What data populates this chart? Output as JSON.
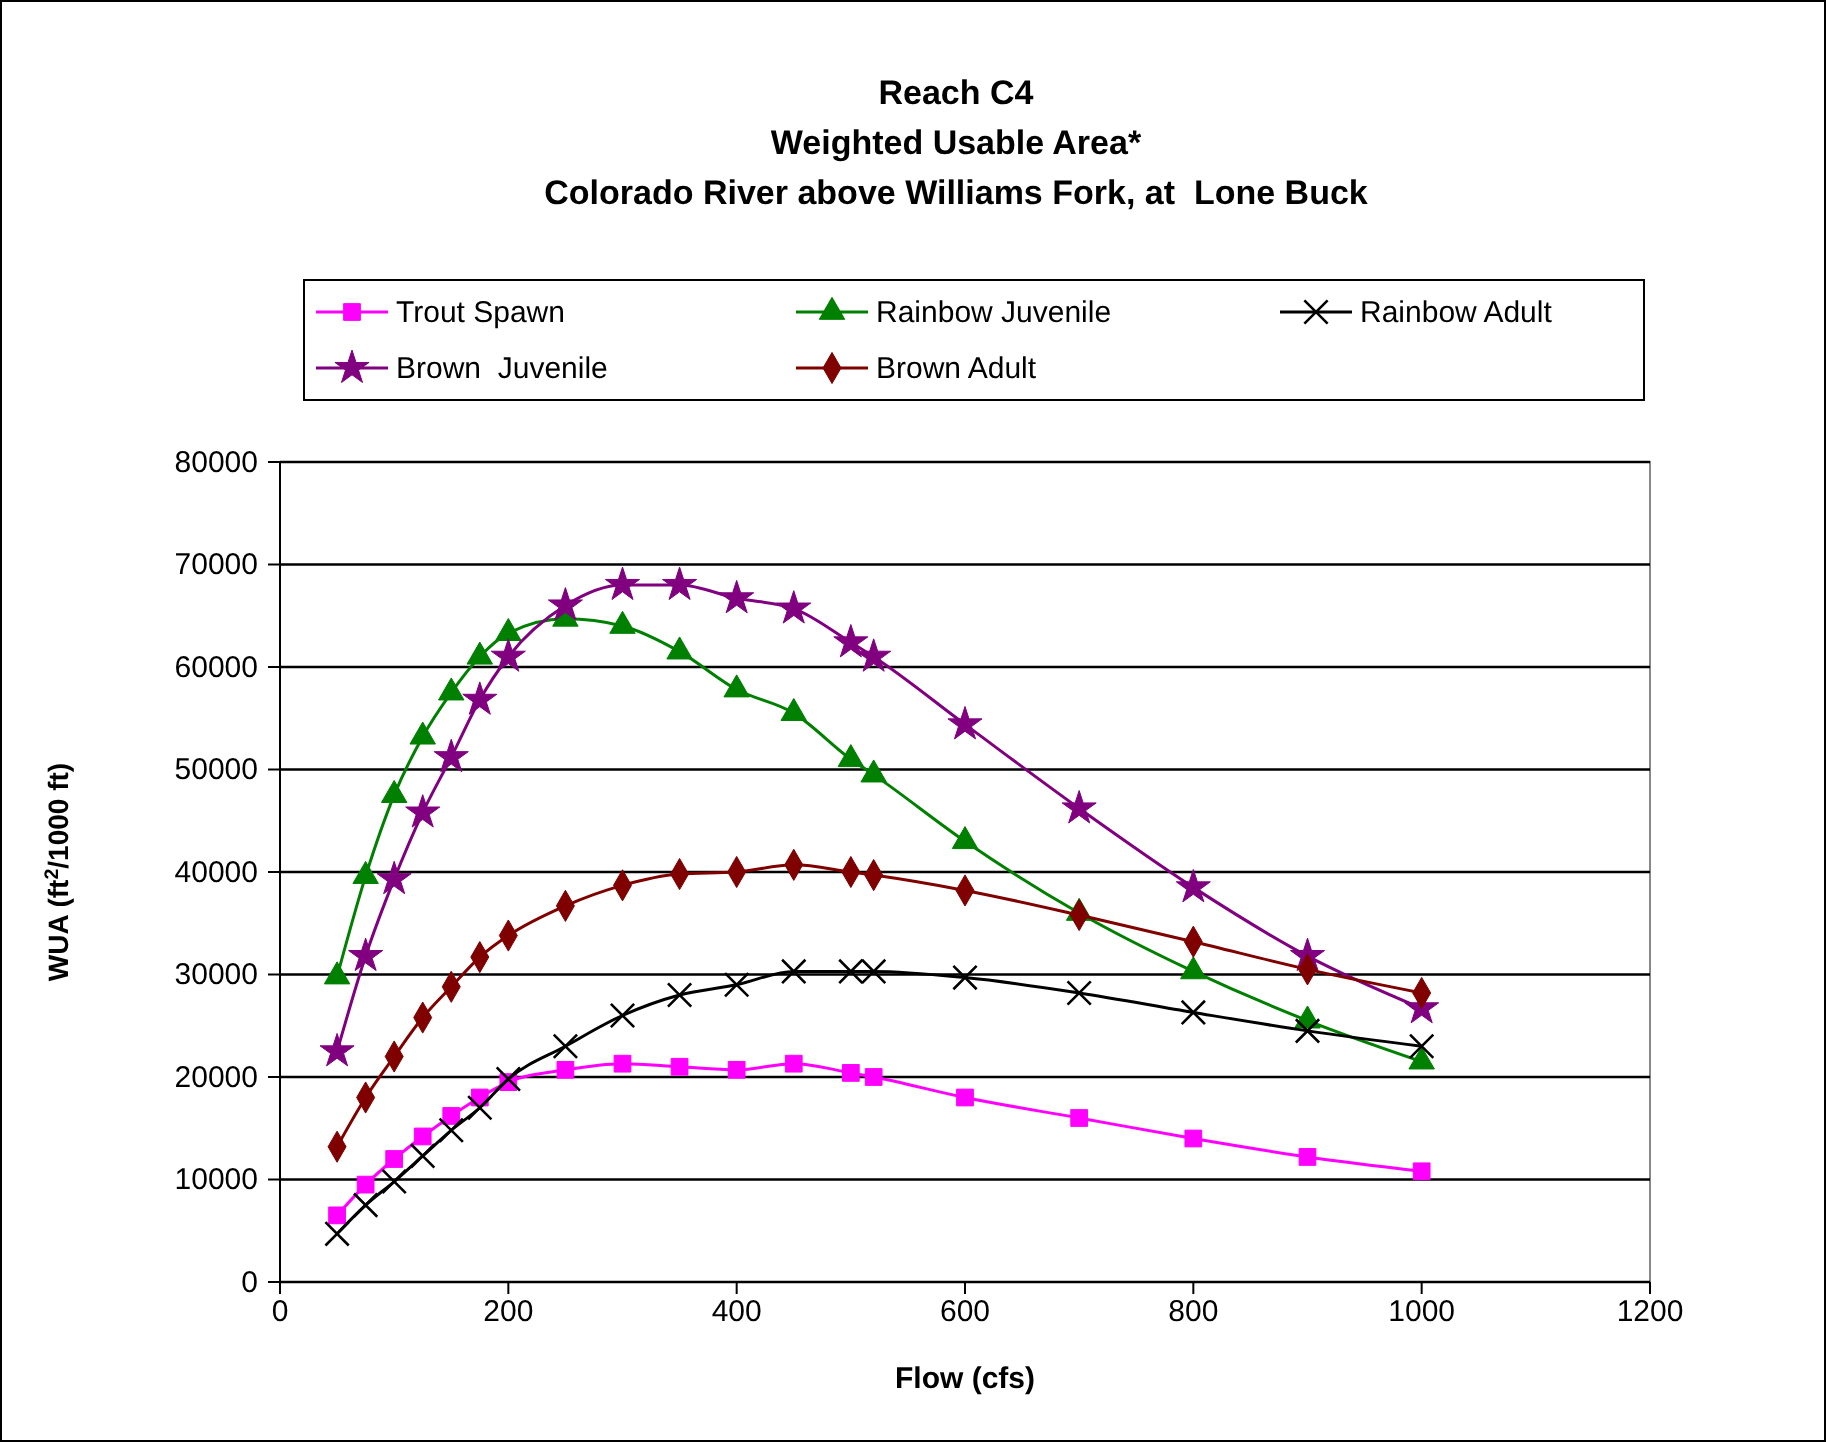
{
  "chart_data": {
    "type": "line",
    "title": "Reach C4",
    "subtitle": "Weighted Usable Area*\nColorado River above Williams Fork, at  Lone Buck",
    "xlabel": "Flow (cfs)",
    "ylabel": "WUA (ft$^{2}$/1000 ft)",
    "x": [
      50,
      75,
      100,
      125,
      150,
      175,
      200,
      250,
      300,
      350,
      400,
      450,
      500,
      520,
      600,
      700,
      800,
      900,
      1000
    ],
    "xlim": [
      0,
      1200
    ],
    "xticks": [
      0,
      200,
      400,
      600,
      800,
      1000,
      1200
    ],
    "ylim": [
      0,
      80000
    ],
    "yticks": [
      0,
      10000,
      20000,
      30000,
      40000,
      50000,
      60000,
      70000,
      80000
    ],
    "grid": "y",
    "legend": "top",
    "series": [
      {
        "name": "Trout Spawn",
        "color": "#ff00ff",
        "marker": "square",
        "values": [
          6500,
          9500,
          12000,
          14200,
          16200,
          18000,
          19500,
          20700,
          21300,
          21000,
          20700,
          21300,
          20400,
          20000,
          18000,
          16000,
          14000,
          12200,
          10800
        ]
      },
      {
        "name": "Rainbow Juvenile",
        "color": "#008000",
        "marker": "triangle",
        "values": [
          29800,
          39600,
          47500,
          53200,
          57500,
          61000,
          63300,
          64700,
          64000,
          61500,
          57800,
          55500,
          51000,
          49500,
          43000,
          36000,
          30300,
          25500,
          21500
        ]
      },
      {
        "name": "Rainbow Adult",
        "color": "#000000",
        "marker": "cross",
        "values": [
          4700,
          7500,
          9800,
          12300,
          14800,
          17000,
          19800,
          23000,
          26000,
          28000,
          29000,
          30300,
          30300,
          30300,
          29700,
          28200,
          26300,
          24500,
          23000
        ]
      },
      {
        "name": "Brown  Juvenile",
        "color": "#800080",
        "marker": "star",
        "values": [
          22500,
          31800,
          39300,
          45800,
          51200,
          56800,
          61000,
          66000,
          68000,
          68000,
          66700,
          65700,
          62400,
          61000,
          54400,
          46200,
          38500,
          31800,
          26700
        ]
      },
      {
        "name": "Brown Adult",
        "color": "#800000",
        "marker": "diamond",
        "values": [
          13200,
          18000,
          22000,
          25800,
          28800,
          31700,
          33800,
          36700,
          38700,
          39800,
          40000,
          40700,
          40000,
          39700,
          38200,
          35800,
          33200,
          30500,
          28200
        ]
      }
    ]
  }
}
